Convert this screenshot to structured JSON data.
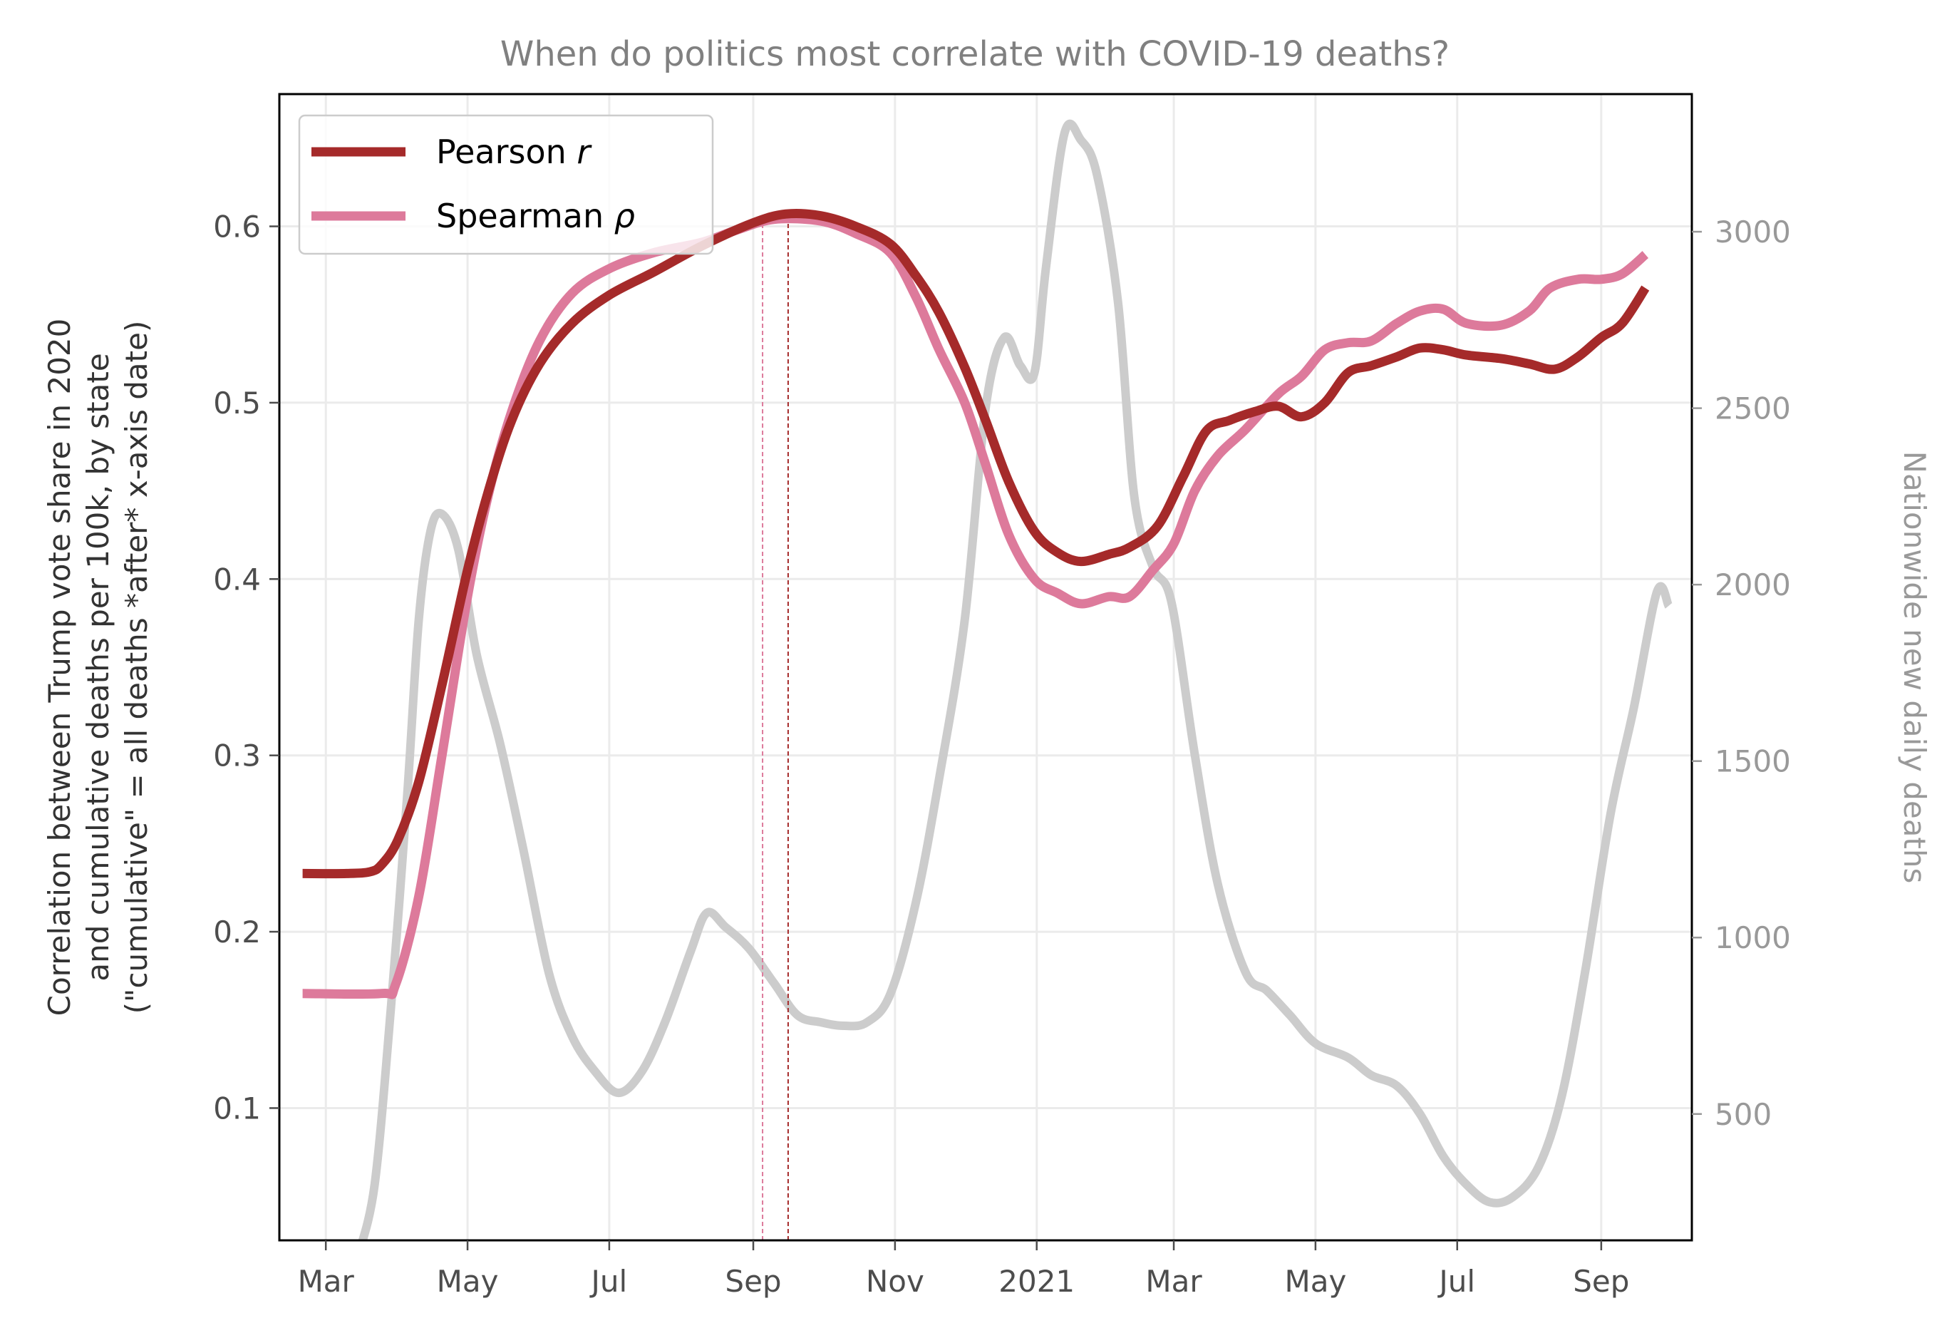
{
  "chart_data": {
    "type": "line",
    "title": "When do politics most correlate with COVID-19 deaths?",
    "ylabel_left_lines": [
      "Correlation between Trump vote share in 2020",
      "and cumulative deaths per 100k, by state",
      "(\"cumulative\" = all deaths *after* x-axis date)"
    ],
    "ylabel_right": "Nationwide new daily deaths",
    "x_ticks": [
      {
        "date": "2020-03-01",
        "label": "Mar"
      },
      {
        "date": "2020-05-01",
        "label": "May"
      },
      {
        "date": "2020-07-01",
        "label": "Jul"
      },
      {
        "date": "2020-09-01",
        "label": "Sep"
      },
      {
        "date": "2020-11-01",
        "label": "Nov"
      },
      {
        "date": "2021-01-01",
        "label": "2021"
      },
      {
        "date": "2021-03-01",
        "label": "Mar"
      },
      {
        "date": "2021-05-01",
        "label": "May"
      },
      {
        "date": "2021-07-01",
        "label": "Jul"
      },
      {
        "date": "2021-09-01",
        "label": "Sep"
      }
    ],
    "xlim": [
      "2020-02-10",
      "2021-10-10"
    ],
    "ylim_left": [
      0.025,
      0.675
    ],
    "ylim_right": [
      142,
      3390
    ],
    "y_ticks_left": [
      0.1,
      0.2,
      0.3,
      0.4,
      0.5,
      0.6
    ],
    "y_ticks_right": [
      500,
      1000,
      1500,
      2000,
      2500,
      3000
    ],
    "grid": true,
    "legend_position": "upper-left",
    "vlines": [
      {
        "date": "2020-09-05",
        "series": "Spearman ρ"
      },
      {
        "date": "2020-09-16",
        "series": "Pearson r"
      }
    ],
    "series": [
      {
        "name_prefix": "Pearson ",
        "name_symbol": "r",
        "name": "Pearson r",
        "axis": "left",
        "color": "#a52a2a",
        "points": [
          [
            "2020-02-20",
            0.233
          ],
          [
            "2020-03-10",
            0.233
          ],
          [
            "2020-03-20",
            0.234
          ],
          [
            "2020-03-25",
            0.238
          ],
          [
            "2020-04-01",
            0.252
          ],
          [
            "2020-04-10",
            0.285
          ],
          [
            "2020-04-20",
            0.34
          ],
          [
            "2020-05-01",
            0.405
          ],
          [
            "2020-05-10",
            0.45
          ],
          [
            "2020-05-20",
            0.49
          ],
          [
            "2020-06-01",
            0.522
          ],
          [
            "2020-06-15",
            0.545
          ],
          [
            "2020-07-01",
            0.561
          ],
          [
            "2020-07-20",
            0.574
          ],
          [
            "2020-08-10",
            0.589
          ],
          [
            "2020-09-01",
            0.602
          ],
          [
            "2020-09-15",
            0.607
          ],
          [
            "2020-09-30",
            0.606
          ],
          [
            "2020-10-15",
            0.6
          ],
          [
            "2020-10-30",
            0.59
          ],
          [
            "2020-11-10",
            0.572
          ],
          [
            "2020-11-20",
            0.551
          ],
          [
            "2020-12-01",
            0.52
          ],
          [
            "2020-12-10",
            0.49
          ],
          [
            "2020-12-20",
            0.455
          ],
          [
            "2020-12-31",
            0.427
          ],
          [
            "2021-01-10",
            0.415
          ],
          [
            "2021-01-20",
            0.41
          ],
          [
            "2021-02-01",
            0.414
          ],
          [
            "2021-02-10",
            0.418
          ],
          [
            "2021-02-22",
            0.43
          ],
          [
            "2021-03-05",
            0.458
          ],
          [
            "2021-03-15",
            0.484
          ],
          [
            "2021-03-25",
            0.49
          ],
          [
            "2021-04-05",
            0.495
          ],
          [
            "2021-04-15",
            0.498
          ],
          [
            "2021-04-25",
            0.492
          ],
          [
            "2021-05-05",
            0.5
          ],
          [
            "2021-05-15",
            0.517
          ],
          [
            "2021-05-25",
            0.521
          ],
          [
            "2021-06-05",
            0.526
          ],
          [
            "2021-06-15",
            0.531
          ],
          [
            "2021-06-25",
            0.53
          ],
          [
            "2021-07-05",
            0.527
          ],
          [
            "2021-07-20",
            0.525
          ],
          [
            "2021-08-01",
            0.522
          ],
          [
            "2021-08-12",
            0.519
          ],
          [
            "2021-08-22",
            0.526
          ],
          [
            "2021-09-01",
            0.537
          ],
          [
            "2021-09-10",
            0.545
          ],
          [
            "2021-09-20",
            0.565
          ]
        ]
      },
      {
        "name_prefix": "Spearman ",
        "name_symbol": "ρ",
        "name": "Spearman ρ",
        "axis": "left",
        "color": "#dd7a9b",
        "points": [
          [
            "2020-02-20",
            0.165
          ],
          [
            "2020-03-25",
            0.165
          ],
          [
            "2020-03-31",
            0.17
          ],
          [
            "2020-04-10",
            0.22
          ],
          [
            "2020-04-20",
            0.3
          ],
          [
            "2020-05-01",
            0.39
          ],
          [
            "2020-05-10",
            0.448
          ],
          [
            "2020-05-20",
            0.495
          ],
          [
            "2020-06-01",
            0.535
          ],
          [
            "2020-06-15",
            0.562
          ],
          [
            "2020-07-01",
            0.576
          ],
          [
            "2020-07-20",
            0.585
          ],
          [
            "2020-08-10",
            0.591
          ],
          [
            "2020-08-25",
            0.598
          ],
          [
            "2020-09-10",
            0.604
          ],
          [
            "2020-09-30",
            0.603
          ],
          [
            "2020-10-15",
            0.596
          ],
          [
            "2020-10-30",
            0.585
          ],
          [
            "2020-11-10",
            0.56
          ],
          [
            "2020-11-20",
            0.53
          ],
          [
            "2020-12-01",
            0.5
          ],
          [
            "2020-12-10",
            0.465
          ],
          [
            "2020-12-20",
            0.425
          ],
          [
            "2020-12-31",
            0.4
          ],
          [
            "2021-01-10",
            0.392
          ],
          [
            "2021-01-20",
            0.386
          ],
          [
            "2021-02-01",
            0.39
          ],
          [
            "2021-02-10",
            0.39
          ],
          [
            "2021-02-20",
            0.405
          ],
          [
            "2021-03-01",
            0.42
          ],
          [
            "2021-03-10",
            0.45
          ],
          [
            "2021-03-20",
            0.47
          ],
          [
            "2021-04-01",
            0.485
          ],
          [
            "2021-04-15",
            0.505
          ],
          [
            "2021-04-25",
            0.515
          ],
          [
            "2021-05-05",
            0.53
          ],
          [
            "2021-05-15",
            0.534
          ],
          [
            "2021-05-25",
            0.535
          ],
          [
            "2021-06-05",
            0.545
          ],
          [
            "2021-06-15",
            0.552
          ],
          [
            "2021-06-25",
            0.553
          ],
          [
            "2021-07-05",
            0.545
          ],
          [
            "2021-07-20",
            0.544
          ],
          [
            "2021-08-01",
            0.552
          ],
          [
            "2021-08-10",
            0.565
          ],
          [
            "2021-08-22",
            0.57
          ],
          [
            "2021-09-01",
            0.57
          ],
          [
            "2021-09-10",
            0.573
          ],
          [
            "2021-09-20",
            0.584
          ]
        ]
      },
      {
        "name": "Nationwide new daily deaths",
        "axis": "right",
        "color": "#cccccc",
        "points": [
          [
            "2020-03-15",
            100
          ],
          [
            "2020-03-22",
            300
          ],
          [
            "2020-03-29",
            800
          ],
          [
            "2020-04-05",
            1400
          ],
          [
            "2020-04-10",
            1900
          ],
          [
            "2020-04-15",
            2150
          ],
          [
            "2020-04-20",
            2200
          ],
          [
            "2020-04-27",
            2100
          ],
          [
            "2020-05-05",
            1800
          ],
          [
            "2020-05-15",
            1550
          ],
          [
            "2020-05-25",
            1250
          ],
          [
            "2020-06-05",
            900
          ],
          [
            "2020-06-15",
            720
          ],
          [
            "2020-06-25",
            620
          ],
          [
            "2020-07-05",
            560
          ],
          [
            "2020-07-15",
            620
          ],
          [
            "2020-07-25",
            760
          ],
          [
            "2020-08-05",
            960
          ],
          [
            "2020-08-12",
            1070
          ],
          [
            "2020-08-20",
            1030
          ],
          [
            "2020-08-30",
            970
          ],
          [
            "2020-09-10",
            870
          ],
          [
            "2020-09-20",
            780
          ],
          [
            "2020-09-30",
            760
          ],
          [
            "2020-10-10",
            750
          ],
          [
            "2020-10-20",
            760
          ],
          [
            "2020-10-30",
            840
          ],
          [
            "2020-11-10",
            1100
          ],
          [
            "2020-11-20",
            1450
          ],
          [
            "2020-12-01",
            1900
          ],
          [
            "2020-12-10",
            2500
          ],
          [
            "2020-12-18",
            2700
          ],
          [
            "2020-12-25",
            2620
          ],
          [
            "2020-12-31",
            2600
          ],
          [
            "2021-01-05",
            2900
          ],
          [
            "2021-01-13",
            3280
          ],
          [
            "2021-01-20",
            3260
          ],
          [
            "2021-01-27",
            3160
          ],
          [
            "2021-02-05",
            2800
          ],
          [
            "2021-02-12",
            2250
          ],
          [
            "2021-02-20",
            2050
          ],
          [
            "2021-02-28",
            1950
          ],
          [
            "2021-03-10",
            1520
          ],
          [
            "2021-03-20",
            1150
          ],
          [
            "2021-04-01",
            900
          ],
          [
            "2021-04-10",
            850
          ],
          [
            "2021-04-20",
            780
          ],
          [
            "2021-05-01",
            700
          ],
          [
            "2021-05-15",
            660
          ],
          [
            "2021-05-25",
            610
          ],
          [
            "2021-06-05",
            580
          ],
          [
            "2021-06-15",
            500
          ],
          [
            "2021-06-25",
            380
          ],
          [
            "2021-07-05",
            300
          ],
          [
            "2021-07-15",
            250
          ],
          [
            "2021-07-25",
            265
          ],
          [
            "2021-08-05",
            350
          ],
          [
            "2021-08-15",
            550
          ],
          [
            "2021-08-25",
            900
          ],
          [
            "2021-09-05",
            1350
          ],
          [
            "2021-09-15",
            1650
          ],
          [
            "2021-09-25",
            1980
          ],
          [
            "2021-09-30",
            1940
          ]
        ]
      }
    ]
  }
}
